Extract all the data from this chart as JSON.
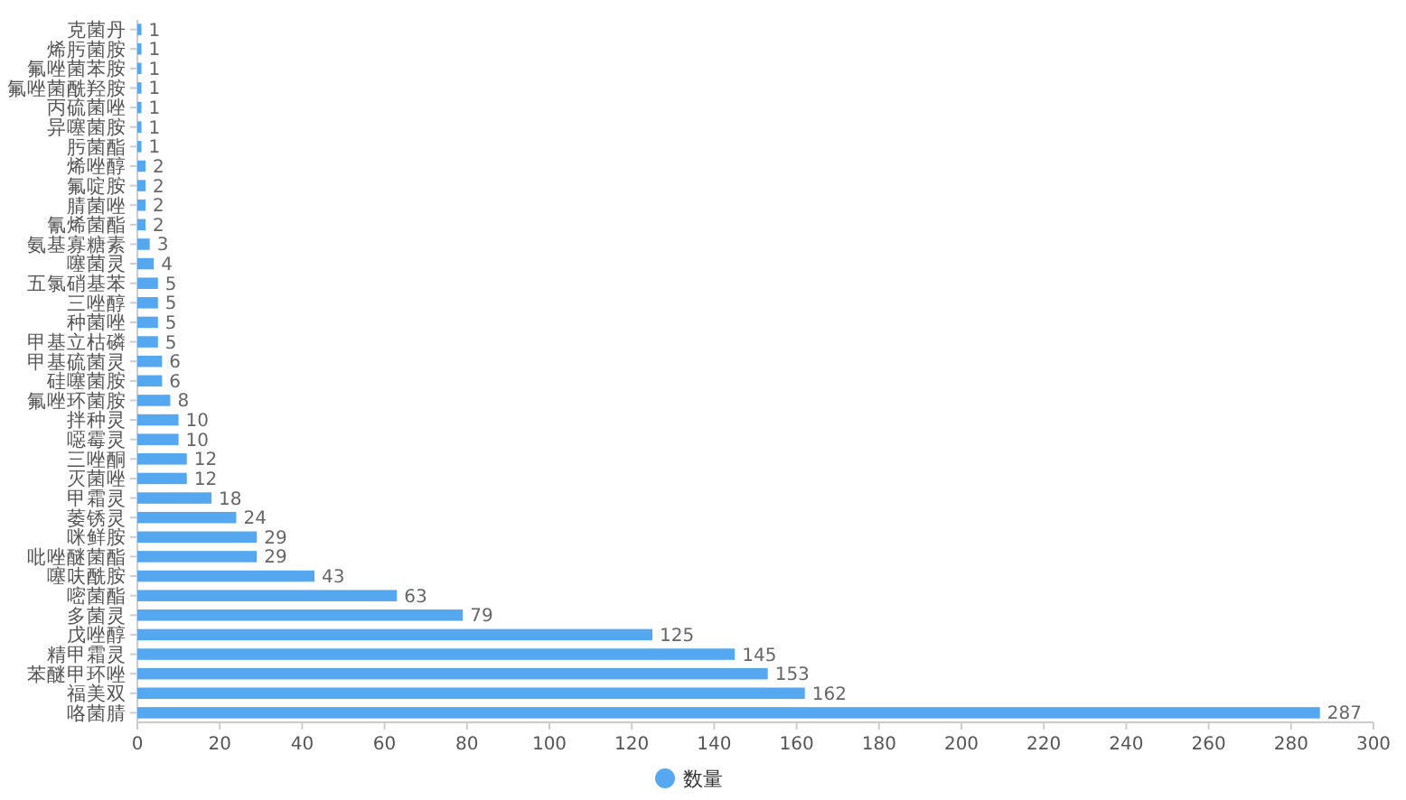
{
  "chart_data": {
    "type": "bar",
    "orientation": "horizontal",
    "categories": [
      "克菌丹",
      "烯肟菌胺",
      "氟唑菌苯胺",
      "氟唑菌酰羟胺",
      "丙硫菌唑",
      "异噻菌胺",
      "肟菌酯",
      "烯唑醇",
      "氟啶胺",
      "腈菌唑",
      "氰烯菌酯",
      "氨基寡糖素",
      "噻菌灵",
      "五氯硝基苯",
      "三唑醇",
      "种菌唑",
      "甲基立枯磷",
      "甲基硫菌灵",
      "硅噻菌胺",
      "氟唑环菌胺",
      "拌种灵",
      "噁霉灵",
      "三唑酮",
      "灭菌唑",
      "甲霜灵",
      "萎锈灵",
      "咪鲜胺",
      "吡唑醚菌酯",
      "噻呋酰胺",
      "嘧菌酯",
      "多菌灵",
      "戊唑醇",
      "精甲霜灵",
      "苯醚甲环唑",
      "福美双",
      "咯菌腈"
    ],
    "series": [
      {
        "name": "数量",
        "color": "#55a8f0",
        "values": [
          1,
          1,
          1,
          1,
          1,
          1,
          1,
          2,
          2,
          2,
          2,
          3,
          4,
          5,
          5,
          5,
          5,
          6,
          6,
          8,
          10,
          10,
          12,
          12,
          18,
          24,
          29,
          29,
          43,
          63,
          79,
          125,
          145,
          153,
          162,
          287
        ]
      }
    ],
    "xlim": [
      0,
      300
    ],
    "xticks": [
      0,
      20,
      40,
      60,
      80,
      100,
      120,
      140,
      160,
      180,
      200,
      220,
      240,
      260,
      280,
      300
    ],
    "data_labels": true,
    "legend": "bottom"
  }
}
